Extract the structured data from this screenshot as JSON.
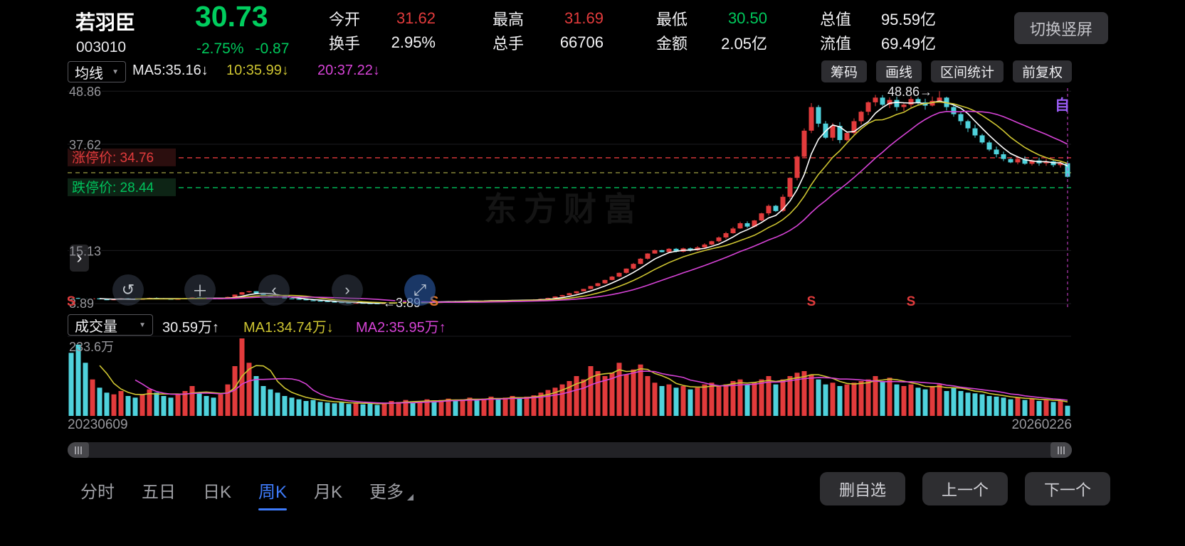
{
  "colors": {
    "red": "#e23b3c",
    "green": "#00c25c",
    "cyan": "#4fd2dc",
    "yellow": "#cdc431",
    "magenta": "#d643d6",
    "blue": "#3e7bfa",
    "purple": "#9a5cf5",
    "price_green": "#00cd5e"
  },
  "header": {
    "stock_name": "若羽臣",
    "stock_code": "003010",
    "price": "30.73",
    "change_pct": "-2.75%",
    "change_val": "-0.87",
    "stats": [
      {
        "label": "今开",
        "value": "31.62",
        "color": "red"
      },
      {
        "label": "换手",
        "value": "2.95%",
        "color": "white"
      },
      {
        "label": "最高",
        "value": "31.69",
        "color": "red"
      },
      {
        "label": "总手",
        "value": "66706",
        "color": "white"
      },
      {
        "label": "最低",
        "value": "30.50",
        "color": "green"
      },
      {
        "label": "金额",
        "value": "2.05亿",
        "color": "white"
      },
      {
        "label": "总值",
        "value": "95.59亿",
        "color": "white"
      },
      {
        "label": "流值",
        "value": "69.49亿",
        "color": "white"
      }
    ],
    "rotate_button": "切换竖屏"
  },
  "ma_toolbar": {
    "dropdown_label": "均线",
    "caret": "▼",
    "ma5": "MA5:35.16↓",
    "ma10": "10:35.99↓",
    "ma20": "20:37.22↓",
    "buttons": [
      "筹码",
      "画线",
      "区间统计",
      "前复权"
    ]
  },
  "chart_overlay": {
    "watermark": "东方财富",
    "auto_badge": "自",
    "expand_icon": "›",
    "circle_icons": [
      "↺",
      "＋",
      "‹",
      "›",
      "⤢"
    ]
  },
  "volume_toolbar": {
    "dropdown_label": "成交量",
    "caret": "▼",
    "current": "30.59万↑",
    "ma1": "MA1:34.74万↓",
    "ma2": "MA2:35.95万↑"
  },
  "bottom_bar": {
    "tabs": [
      {
        "label": "分时",
        "active": false
      },
      {
        "label": "五日",
        "active": false
      },
      {
        "label": "日K",
        "active": false
      },
      {
        "label": "周K",
        "active": true
      },
      {
        "label": "月K",
        "active": false
      },
      {
        "label": "更多",
        "active": false
      }
    ],
    "actions": [
      "删自选",
      "上一个",
      "下一个"
    ]
  },
  "chart_data": {
    "type": "candlestick",
    "title": "若羽臣 003010 周K",
    "date_start": "20230609",
    "date_end": "20260226",
    "y_ticks": [
      48.86,
      37.62,
      15.13,
      3.89
    ],
    "price_axis_range": [
      2.7,
      50.4
    ],
    "limit_up": 34.76,
    "limit_up_label": "涨停价: 34.76",
    "limit_down": 28.44,
    "limit_down_label": "跌停价: 28.44",
    "prev_close": 31.6,
    "high_label": "48.86→",
    "low_label": "←3.89",
    "extreme_high": {
      "index": 122,
      "value": 48.86
    },
    "extreme_low": {
      "index": 43,
      "value": 3.89
    },
    "sell_marks": [
      {
        "index": 0,
        "color": "#e23b3c"
      },
      {
        "index": 51,
        "color": "#e0772e"
      },
      {
        "index": 104,
        "color": "#e23b3c"
      },
      {
        "index": 118,
        "color": "#e23b3c"
      }
    ],
    "closes": [
      5.1,
      5.0,
      4.9,
      5.0,
      4.8,
      4.7,
      4.8,
      5.0,
      4.9,
      4.8,
      4.9,
      5.1,
      5.0,
      4.9,
      4.8,
      4.9,
      5.0,
      5.2,
      5.1,
      5.0,
      4.9,
      5.0,
      5.3,
      5.8,
      6.3,
      6.5,
      6.1,
      5.7,
      5.4,
      5.2,
      5.0,
      4.9,
      4.8,
      4.6,
      4.5,
      4.4,
      4.3,
      4.2,
      4.1,
      4.0,
      4.05,
      3.98,
      3.95,
      3.92,
      4.0,
      4.1,
      4.15,
      4.2,
      4.15,
      4.25,
      4.3,
      4.25,
      4.35,
      4.4,
      4.35,
      4.45,
      4.5,
      4.45,
      4.5,
      4.6,
      4.55,
      4.6,
      4.65,
      4.6,
      4.7,
      4.75,
      4.9,
      5.1,
      5.4,
      5.7,
      6.1,
      6.5,
      7.0,
      7.6,
      8.2,
      8.9,
      9.6,
      10.4,
      11.3,
      12.3,
      13.4,
      14.5,
      15.2,
      14.8,
      15.5,
      14.9,
      15.6,
      15.2,
      15.8,
      16.4,
      17.1,
      17.9,
      18.8,
      19.8,
      20.9,
      20.2,
      21.5,
      23.0,
      24.6,
      23.5,
      26.5,
      30.5,
      35.0,
      40.5,
      45.5,
      42.0,
      39.0,
      41.5,
      38.5,
      40.0,
      42.5,
      44.5,
      46.5,
      47.5,
      46.0,
      47.0,
      45.5,
      46.0,
      47.2,
      46.5,
      45.8,
      46.8,
      47.5,
      45.5,
      44.0,
      42.5,
      41.0,
      39.5,
      38.0,
      36.5,
      35.5,
      34.5,
      33.8,
      34.5,
      33.5,
      34.2,
      33.6,
      34.0,
      33.2,
      33.6,
      30.73
    ],
    "volume_max": 233.6,
    "volume_max_label": "233.6万",
    "volumes": [
      190,
      215,
      160,
      110,
      85,
      70,
      65,
      75,
      60,
      55,
      65,
      80,
      70,
      60,
      55,
      65,
      75,
      90,
      70,
      60,
      55,
      65,
      95,
      150,
      233.6,
      160,
      120,
      90,
      80,
      70,
      60,
      55,
      50,
      45,
      48,
      42,
      40,
      38,
      42,
      36,
      40,
      35,
      38,
      33,
      40,
      45,
      42,
      48,
      40,
      45,
      50,
      44,
      48,
      52,
      46,
      50,
      55,
      48,
      52,
      58,
      50,
      55,
      60,
      52,
      58,
      62,
      70,
      78,
      85,
      95,
      105,
      120,
      110,
      150,
      135,
      120,
      130,
      160,
      125,
      140,
      155,
      120,
      100,
      90,
      95,
      85,
      90,
      80,
      85,
      95,
      100,
      90,
      95,
      105,
      110,
      95,
      100,
      110,
      120,
      95,
      110,
      120,
      130,
      135,
      125,
      110,
      95,
      100,
      90,
      95,
      100,
      105,
      110,
      120,
      105,
      115,
      95,
      90,
      95,
      85,
      80,
      90,
      95,
      75,
      85,
      75,
      70,
      68,
      65,
      60,
      58,
      55,
      50,
      55,
      48,
      52,
      45,
      48,
      42,
      45,
      30.59
    ]
  }
}
